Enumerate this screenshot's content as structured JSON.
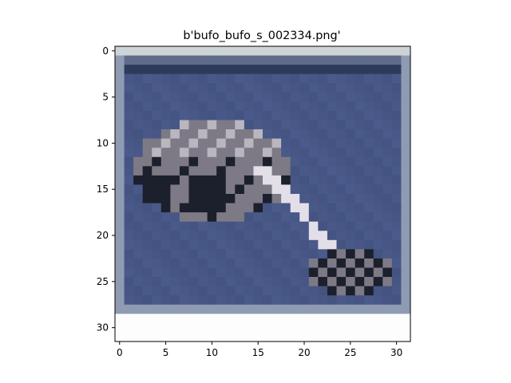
{
  "figure": {
    "title": "b'bufo_bufo_s_002334.png'"
  },
  "axes": {
    "x_ticks": [
      {
        "value": 0,
        "label": "0"
      },
      {
        "value": 5,
        "label": "5"
      },
      {
        "value": 10,
        "label": "10"
      },
      {
        "value": 15,
        "label": "15"
      },
      {
        "value": 20,
        "label": "20"
      },
      {
        "value": 25,
        "label": "25"
      },
      {
        "value": 30,
        "label": "30"
      }
    ],
    "y_ticks": [
      {
        "value": 0,
        "label": "0"
      },
      {
        "value": 5,
        "label": "5"
      },
      {
        "value": 10,
        "label": "10"
      },
      {
        "value": 15,
        "label": "15"
      },
      {
        "value": 20,
        "label": "20"
      },
      {
        "value": 25,
        "label": "25"
      },
      {
        "value": 30,
        "label": "30"
      }
    ],
    "xlim": [
      -0.5,
      31.5
    ],
    "ylim": [
      31.5,
      -0.5
    ]
  },
  "image": {
    "grid_size": [
      32,
      32
    ],
    "colors": {
      "background": "#4a5a8a",
      "border_top": "#cdd4d8",
      "border_side": "#8f9bb3",
      "frame_dark": "#2e3a5c",
      "blank_bottom": "#fdfdfd",
      "subject_light": "#b9b6c0",
      "subject_mid": "#7d7a86",
      "subject_dark": "#1c1f2c",
      "stripe_light": "#e3dfe8",
      "accent_red": "#5a2a2c"
    }
  }
}
